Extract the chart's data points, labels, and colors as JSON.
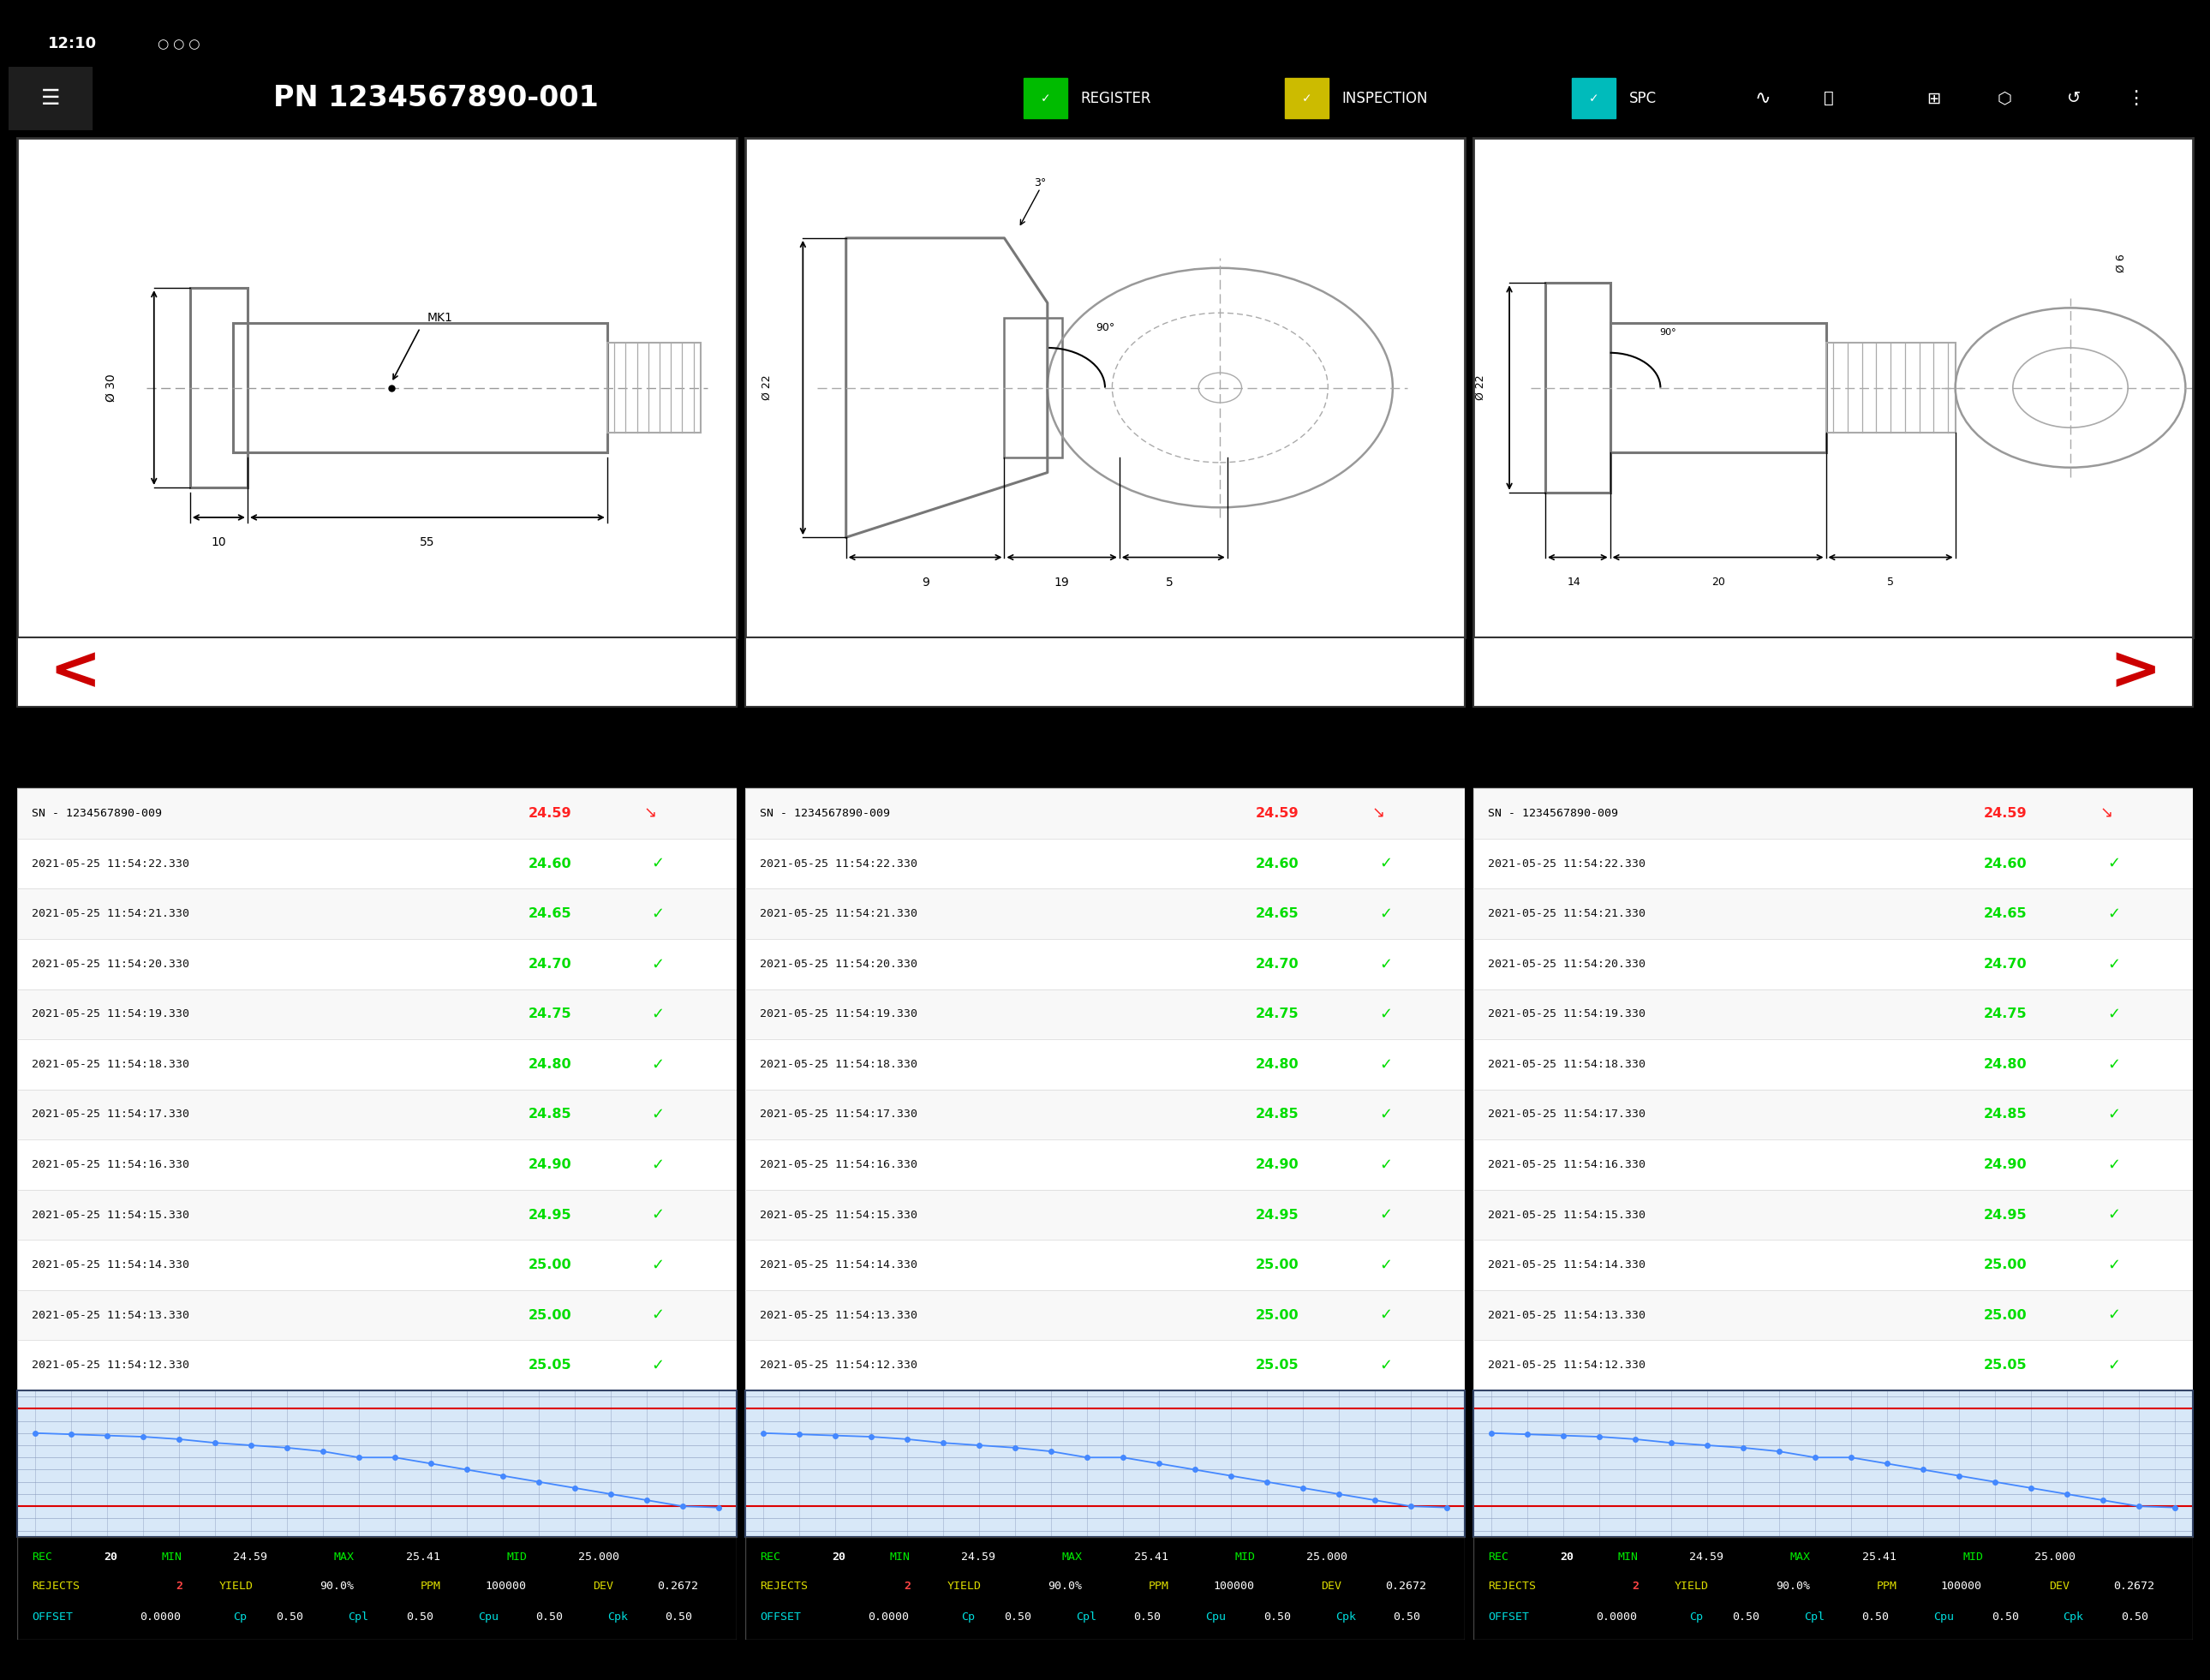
{
  "bg_color": "#000000",
  "header_bg": "#3a3a3a",
  "header_title": "PN 1234567890-001",
  "status_bar_color": "#00e5ff",
  "panel_bg": "#ffffff",
  "measurement_high": "25.40",
  "measurement_low": "24.60",
  "rows": [
    {
      "time": "2021-05-25 11:54:22.",
      "ms": "330",
      "value": "24.60",
      "ok": true
    },
    {
      "time": "2021-05-25 11:54:21.",
      "ms": "330",
      "value": "24.65",
      "ok": true
    },
    {
      "time": "2021-05-25 11:54:20.",
      "ms": "330",
      "value": "24.70",
      "ok": true
    },
    {
      "time": "2021-05-25 11:54:19.",
      "ms": "330",
      "value": "24.75",
      "ok": true
    },
    {
      "time": "2021-05-25 11:54:18.",
      "ms": "330",
      "value": "24.80",
      "ok": true
    },
    {
      "time": "2021-05-25 11:54:17.",
      "ms": "330",
      "value": "24.85",
      "ok": true
    },
    {
      "time": "2021-05-25 11:54:16.",
      "ms": "330",
      "value": "24.90",
      "ok": true
    },
    {
      "time": "2021-05-25 11:54:15.",
      "ms": "330",
      "value": "24.95",
      "ok": true
    },
    {
      "time": "2021-05-25 11:54:14.",
      "ms": "330",
      "value": "25.00",
      "ok": true
    },
    {
      "time": "2021-05-25 11:54:13.",
      "ms": "330",
      "value": "25.00",
      "ok": true
    },
    {
      "time": "2021-05-25 11:54:12.",
      "ms": "330",
      "value": "25.05",
      "ok": true
    }
  ],
  "chart_values": [
    25.2,
    25.19,
    25.18,
    25.17,
    25.15,
    25.12,
    25.1,
    25.08,
    25.05,
    25.0,
    25.0,
    24.95,
    24.9,
    24.85,
    24.8,
    24.75,
    24.7,
    24.65,
    24.6,
    24.59
  ],
  "chart_dot_color": "#4488ff",
  "chart_line_color": "#4488ff",
  "chart_bg": "#d8e8f8",
  "chart_grid_color": "#8899bb",
  "green_color": "#00dd00",
  "red_color": "#ff2222",
  "cyan_color": "#00e5ff",
  "nav_arrow_color": "#cc0000",
  "stats_bg": "#000000",
  "rec_label_color": "#00ee00",
  "rec_value_color": "#ffffff",
  "rejects_label_color": "#dddd00",
  "offset_label_color": "#00dddd"
}
